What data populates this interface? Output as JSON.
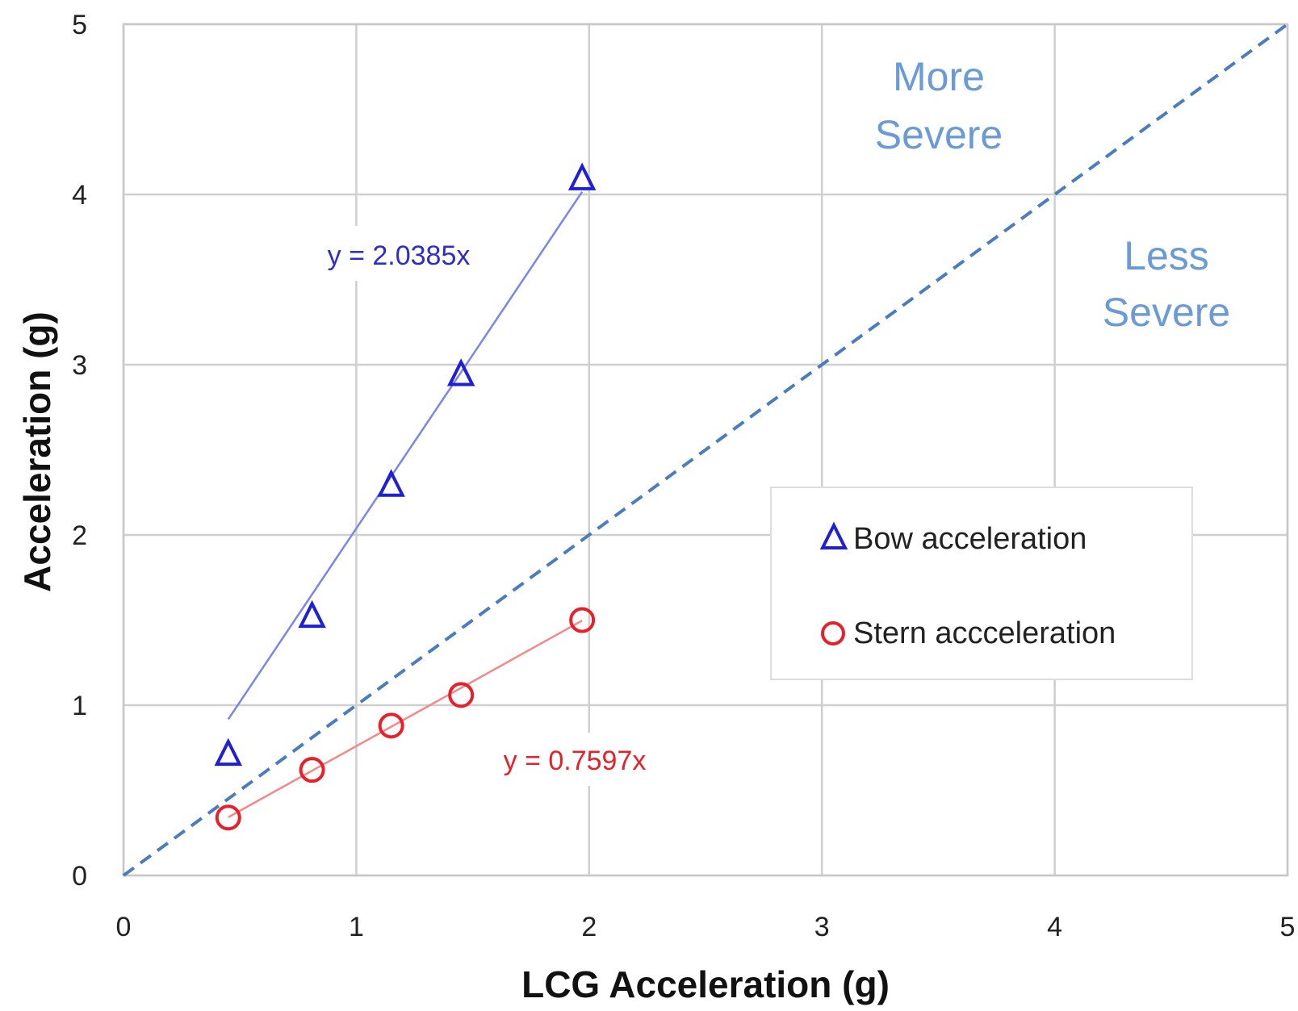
{
  "chart_data": {
    "type": "scatter",
    "xlabel": "LCG Acceleration  (g)",
    "ylabel": "Acceleration  (g)",
    "xlim": [
      0,
      5
    ],
    "ylim": [
      0,
      5
    ],
    "x_ticks": [
      "0",
      "1",
      "2",
      "3",
      "4",
      "5"
    ],
    "y_ticks": [
      "0",
      "1",
      "2",
      "3",
      "4",
      "5"
    ],
    "grid": true,
    "legend_position": "center-right",
    "reference_line": {
      "style": "dashed",
      "color": "#4a7cc0",
      "slope": 1
    },
    "series": [
      {
        "name": "Bow acceleration",
        "marker": "triangle",
        "color": "#1f1fd6",
        "trend_color": "#7b86e8",
        "x": [
          0.45,
          0.81,
          1.15,
          1.45,
          1.97
        ],
        "y": [
          0.72,
          1.53,
          2.3,
          2.95,
          4.1
        ],
        "trendline": {
          "slope": 2.0385,
          "label": "y = 2.0385x"
        }
      },
      {
        "name": "Stern accceleration",
        "marker": "circle",
        "color": "#e8202a",
        "trend_color": "#f28a8a",
        "x": [
          0.45,
          0.81,
          1.15,
          1.45,
          1.97
        ],
        "y": [
          0.34,
          0.62,
          0.88,
          1.06,
          1.5
        ],
        "trendline": {
          "slope": 0.7597,
          "label": "y = 0.7597x"
        }
      }
    ],
    "annotations": [
      {
        "lines": [
          "More",
          "Severe"
        ],
        "color": "#6a9bd6"
      },
      {
        "lines": [
          "Less",
          "Severe"
        ],
        "color": "#6a9bd6"
      }
    ]
  }
}
